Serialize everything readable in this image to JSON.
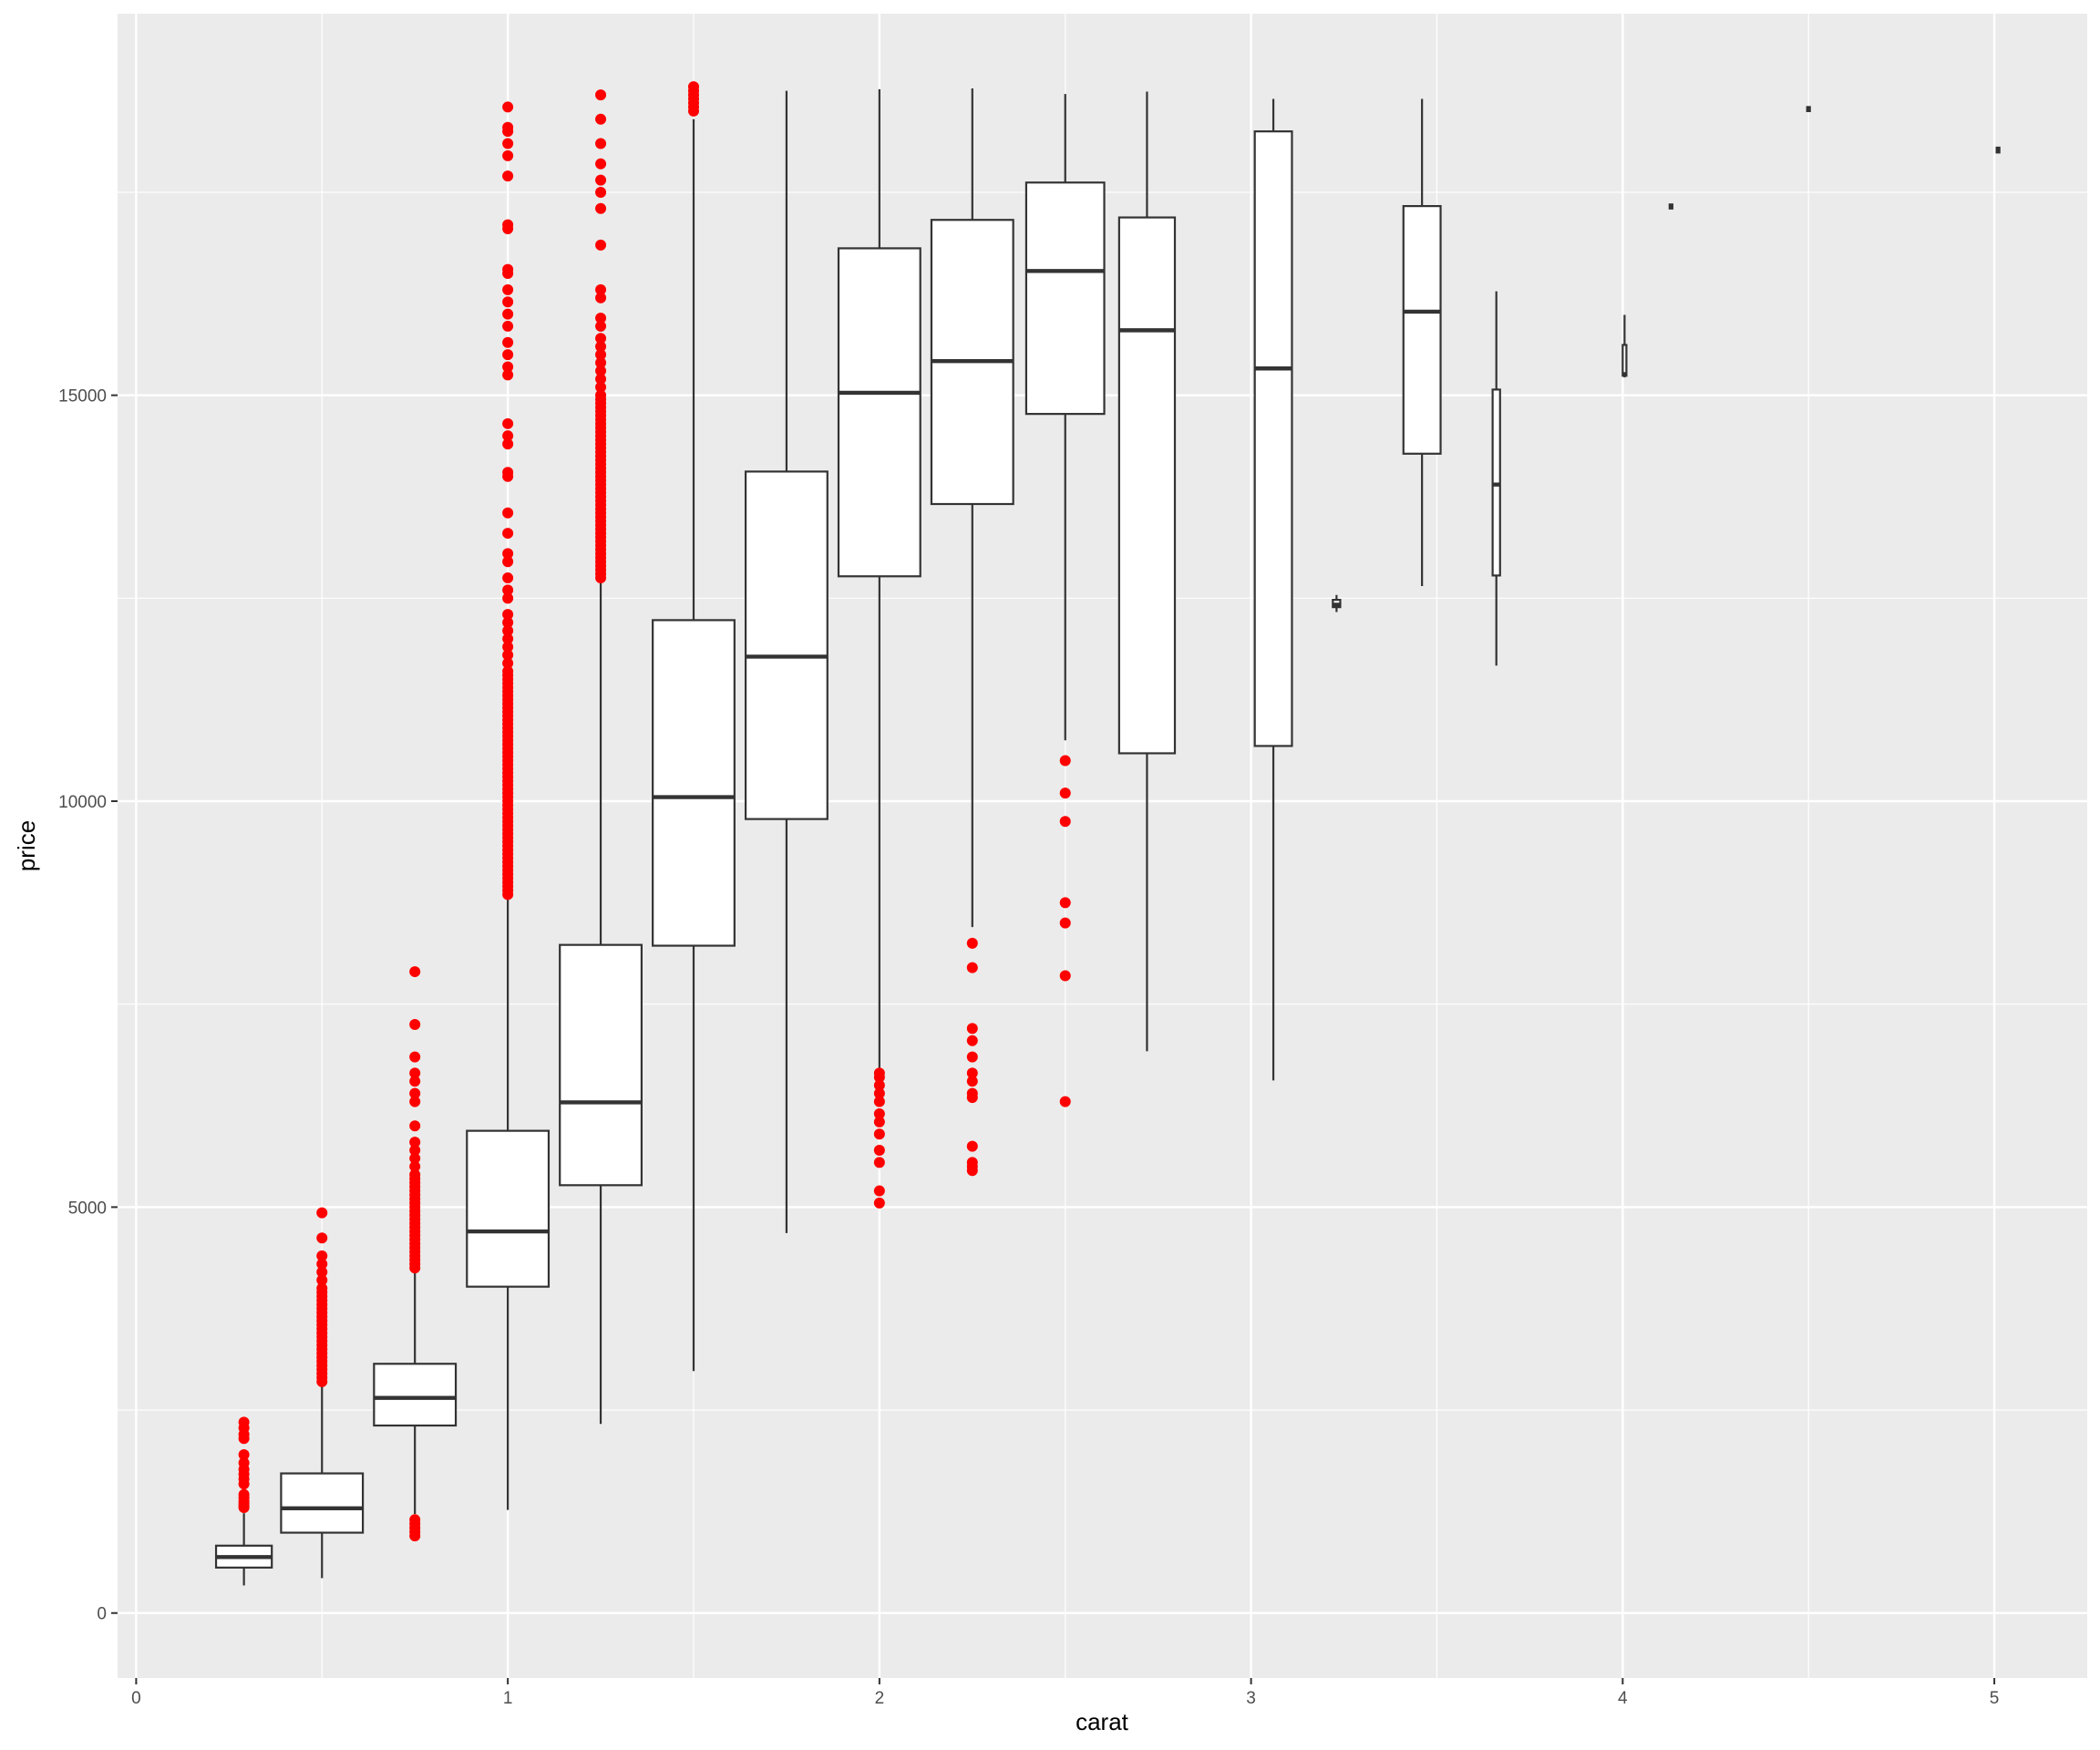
{
  "chart_data": {
    "type": "boxplot",
    "xlabel": "carat",
    "ylabel": "price",
    "xlim": [
      -0.05,
      5.25
    ],
    "ylim": [
      -800,
      19700
    ],
    "x_ticks": [
      0,
      1,
      2,
      3,
      4,
      5
    ],
    "x_minor_ticks": [
      0.5,
      1.5,
      2.5,
      3.5,
      4.5
    ],
    "y_ticks": [
      0,
      5000,
      10000,
      15000
    ],
    "y_minor_ticks": [
      2500,
      7500,
      12500,
      17500
    ],
    "grid": true,
    "outlier_color": "#ff0000",
    "panel_color": "#ebebeb",
    "boxes": [
      {
        "x": 0.29,
        "width": 0.15,
        "lower_whisker": 340,
        "q1": 560,
        "median": 690,
        "q3": 830,
        "upper_whisker": 1230,
        "outliers": [
          1300,
          1320,
          1350,
          1380,
          1420,
          1460,
          1590,
          1650,
          1710,
          1770,
          1850,
          1950,
          2150,
          2200,
          2280,
          2350
        ]
      },
      {
        "x": 0.5,
        "width": 0.22,
        "lower_whisker": 430,
        "q1": 990,
        "median": 1290,
        "q3": 1720,
        "upper_whisker": 2800,
        "outliers": [
          2850,
          2900,
          2950,
          3000,
          3050,
          3100,
          3150,
          3200,
          3250,
          3300,
          3350,
          3400,
          3450,
          3500,
          3550,
          3600,
          3650,
          3700,
          3750,
          3800,
          3850,
          3900,
          3950,
          4000,
          4100,
          4200,
          4300,
          4400,
          4620,
          4930
        ]
      },
      {
        "x": 0.75,
        "width": 0.22,
        "lower_whisker": 1220,
        "q1": 2310,
        "median": 2650,
        "q3": 3070,
        "upper_whisker": 4200,
        "outliers": [
          950,
          1000,
          1050,
          1100,
          1150,
          4250,
          4300,
          4350,
          4400,
          4450,
          4500,
          4550,
          4600,
          4650,
          4700,
          4750,
          4800,
          4850,
          4900,
          4950,
          5000,
          5050,
          5100,
          5150,
          5200,
          5250,
          5300,
          5350,
          5400,
          5500,
          5600,
          5700,
          5800,
          6000,
          6300,
          6400,
          6550,
          6650,
          6850,
          7250,
          7900
        ]
      },
      {
        "x": 1.0,
        "width": 0.22,
        "lower_whisker": 1270,
        "q1": 4020,
        "median": 4700,
        "q3": 5940,
        "upper_whisker": 8800,
        "outliers": [
          8850,
          8900,
          8950,
          9000,
          9050,
          9100,
          9150,
          9200,
          9250,
          9300,
          9350,
          9400,
          9450,
          9500,
          9550,
          9600,
          9650,
          9700,
          9750,
          9800,
          9850,
          9900,
          9950,
          10000,
          10050,
          10100,
          10150,
          10200,
          10250,
          10300,
          10350,
          10400,
          10450,
          10500,
          10550,
          10600,
          10650,
          10700,
          10750,
          10800,
          10850,
          10900,
          10950,
          11000,
          11050,
          11100,
          11150,
          11200,
          11250,
          11300,
          11350,
          11400,
          11450,
          11500,
          11550,
          11600,
          11700,
          11800,
          11900,
          12000,
          12100,
          12200,
          12300,
          12500,
          12600,
          12750,
          12950,
          13050,
          13300,
          13550,
          14000,
          14050,
          14400,
          14500,
          14650,
          15250,
          15350,
          15500,
          15650,
          15850,
          16000,
          16150,
          16300,
          16500,
          16550,
          17050,
          17100,
          17700,
          17950,
          18100,
          18250,
          18300,
          18550
        ]
      },
      {
        "x": 1.25,
        "width": 0.22,
        "lower_whisker": 2330,
        "q1": 5270,
        "median": 6290,
        "q3": 8230,
        "upper_whisker": 12700,
        "outliers": [
          12750,
          12800,
          12850,
          12900,
          12950,
          13000,
          13050,
          13100,
          13150,
          13200,
          13250,
          13300,
          13350,
          13400,
          13450,
          13500,
          13550,
          13600,
          13650,
          13700,
          13750,
          13800,
          13850,
          13900,
          13950,
          14000,
          14050,
          14100,
          14150,
          14200,
          14250,
          14300,
          14350,
          14400,
          14450,
          14500,
          14550,
          14600,
          14650,
          14700,
          14750,
          14800,
          14850,
          14900,
          14950,
          15000,
          15100,
          15200,
          15300,
          15400,
          15500,
          15600,
          15700,
          15850,
          15950,
          16200,
          16300,
          16850,
          17300,
          17500,
          17650,
          17850,
          18100,
          18400,
          18700
        ]
      },
      {
        "x": 1.5,
        "width": 0.22,
        "lower_whisker": 2980,
        "q1": 8220,
        "median": 10050,
        "q3": 12230,
        "upper_whisker": 18400,
        "outliers": [
          18500,
          18550,
          18600,
          18650,
          18700,
          18750,
          18800
        ]
      },
      {
        "x": 1.75,
        "width": 0.22,
        "lower_whisker": 4680,
        "q1": 9780,
        "median": 11780,
        "q3": 14060,
        "upper_whisker": 18750,
        "outliers": []
      },
      {
        "x": 2.0,
        "width": 0.22,
        "lower_whisker": 6680,
        "q1": 12770,
        "median": 15030,
        "q3": 16810,
        "upper_whisker": 18770,
        "outliers": [
          5050,
          5200,
          5550,
          5700,
          5900,
          6050,
          6150,
          6300,
          6400,
          6500,
          6600,
          6650
        ]
      },
      {
        "x": 2.25,
        "width": 0.22,
        "lower_whisker": 8450,
        "q1": 13660,
        "median": 15420,
        "q3": 17160,
        "upper_whisker": 18780,
        "outliers": [
          5450,
          5500,
          5550,
          5750,
          6350,
          6400,
          6550,
          6650,
          6850,
          7050,
          7200,
          7950,
          8250
        ]
      },
      {
        "x": 2.5,
        "width": 0.21,
        "lower_whisker": 10750,
        "q1": 14770,
        "median": 16530,
        "q3": 17620,
        "upper_whisker": 18710,
        "outliers": [
          6300,
          7850,
          8500,
          8750,
          9750,
          10100,
          10500
        ]
      },
      {
        "x": 2.72,
        "width": 0.15,
        "lower_whisker": 6920,
        "q1": 10590,
        "median": 15800,
        "q3": 17190,
        "upper_whisker": 18740,
        "outliers": []
      },
      {
        "x": 3.06,
        "width": 0.1,
        "lower_whisker": 6560,
        "q1": 10680,
        "median": 15330,
        "q3": 18250,
        "upper_whisker": 18650,
        "outliers": []
      },
      {
        "x": 3.23,
        "width": 0.02,
        "lower_whisker": 12330,
        "q1": 12390,
        "median": 12420,
        "q3": 12480,
        "upper_whisker": 12540,
        "outliers": []
      },
      {
        "x": 3.46,
        "width": 0.1,
        "lower_whisker": 12650,
        "q1": 14280,
        "median": 16030,
        "q3": 17330,
        "upper_whisker": 18650,
        "outliers": []
      },
      {
        "x": 3.66,
        "width": 0.02,
        "lower_whisker": 11670,
        "q1": 12780,
        "median": 13900,
        "q3": 15070,
        "upper_whisker": 16280,
        "outliers": []
      },
      {
        "x": 4.005,
        "width": 0.01,
        "lower_whisker": 15220,
        "q1": 15240,
        "median": 15260,
        "q3": 15620,
        "upper_whisker": 15990,
        "outliers": []
      },
      {
        "x": 4.13,
        "width": 0.004,
        "lower_whisker": 17300,
        "q1": 17300,
        "median": 17330,
        "q3": 17350,
        "upper_whisker": 17350,
        "outliers": []
      },
      {
        "x": 4.5,
        "width": 0.004,
        "lower_whisker": 18500,
        "q1": 18500,
        "median": 18530,
        "q3": 18550,
        "upper_whisker": 18550,
        "outliers": []
      },
      {
        "x": 5.01,
        "width": 0.004,
        "lower_whisker": 17990,
        "q1": 17990,
        "median": 18020,
        "q3": 18050,
        "upper_whisker": 18050,
        "outliers": []
      }
    ]
  }
}
